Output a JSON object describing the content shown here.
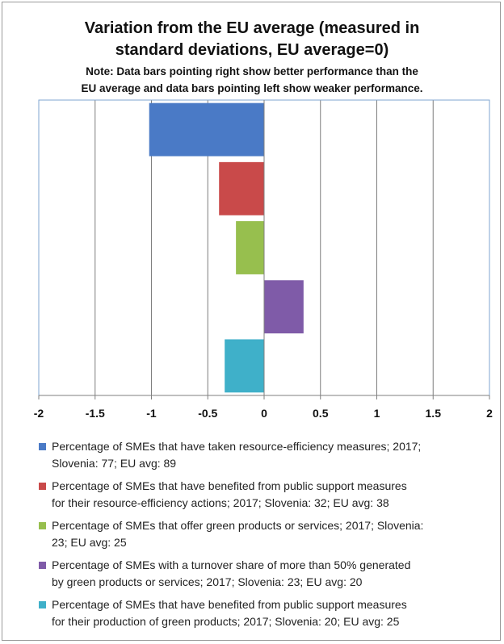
{
  "chart_data": {
    "type": "bar",
    "orientation": "horizontal",
    "title_line1": "Variation from the EU average (measured in",
    "title_line2": "standard deviations, EU average=0)",
    "note_line1": "Note: Data bars pointing right show better performance than the",
    "note_line2": "EU average and data bars pointing left show weaker performance.",
    "xlim": [
      -2,
      2
    ],
    "ticks": [
      "-2",
      "-1.5",
      "-1",
      "-0.5",
      "0",
      "0.5",
      "1",
      "1.5",
      "2"
    ],
    "tick_values": [
      -2,
      -1.5,
      -1,
      -0.5,
      0,
      0.5,
      1,
      1.5,
      2
    ],
    "grid": true,
    "legend_position": "bottom",
    "series": [
      {
        "label_line1": "Percentage of SMEs that have taken resource-efficiency measures; 2017;",
        "label_line2": "Slovenia: 77; EU avg: 89",
        "value": -1.02,
        "color": "#4a7ac6"
      },
      {
        "label_line1": "Percentage of SMEs that have benefited from public support measures",
        "label_line2": "for their resource-efficiency actions; 2017; Slovenia: 32; EU avg: 38",
        "value": -0.4,
        "color": "#c94a4a"
      },
      {
        "label_line1": "Percentage of SMEs that offer green products or services; 2017; Slovenia:",
        "label_line2": "23; EU avg: 25",
        "value": -0.25,
        "color": "#97bf4e"
      },
      {
        "label_line1": "Percentage of SMEs with a turnover share of more than 50% generated",
        "label_line2": "by green products or services; 2017; Slovenia: 23; EU avg: 20",
        "value": 0.35,
        "color": "#7f5ba8"
      },
      {
        "label_line1": "Percentage of SMEs that have benefited from public support measures",
        "label_line2": "for their production of green products; 2017; Slovenia: 20; EU avg: 25",
        "value": -0.35,
        "color": "#3fb0c9"
      }
    ]
  }
}
